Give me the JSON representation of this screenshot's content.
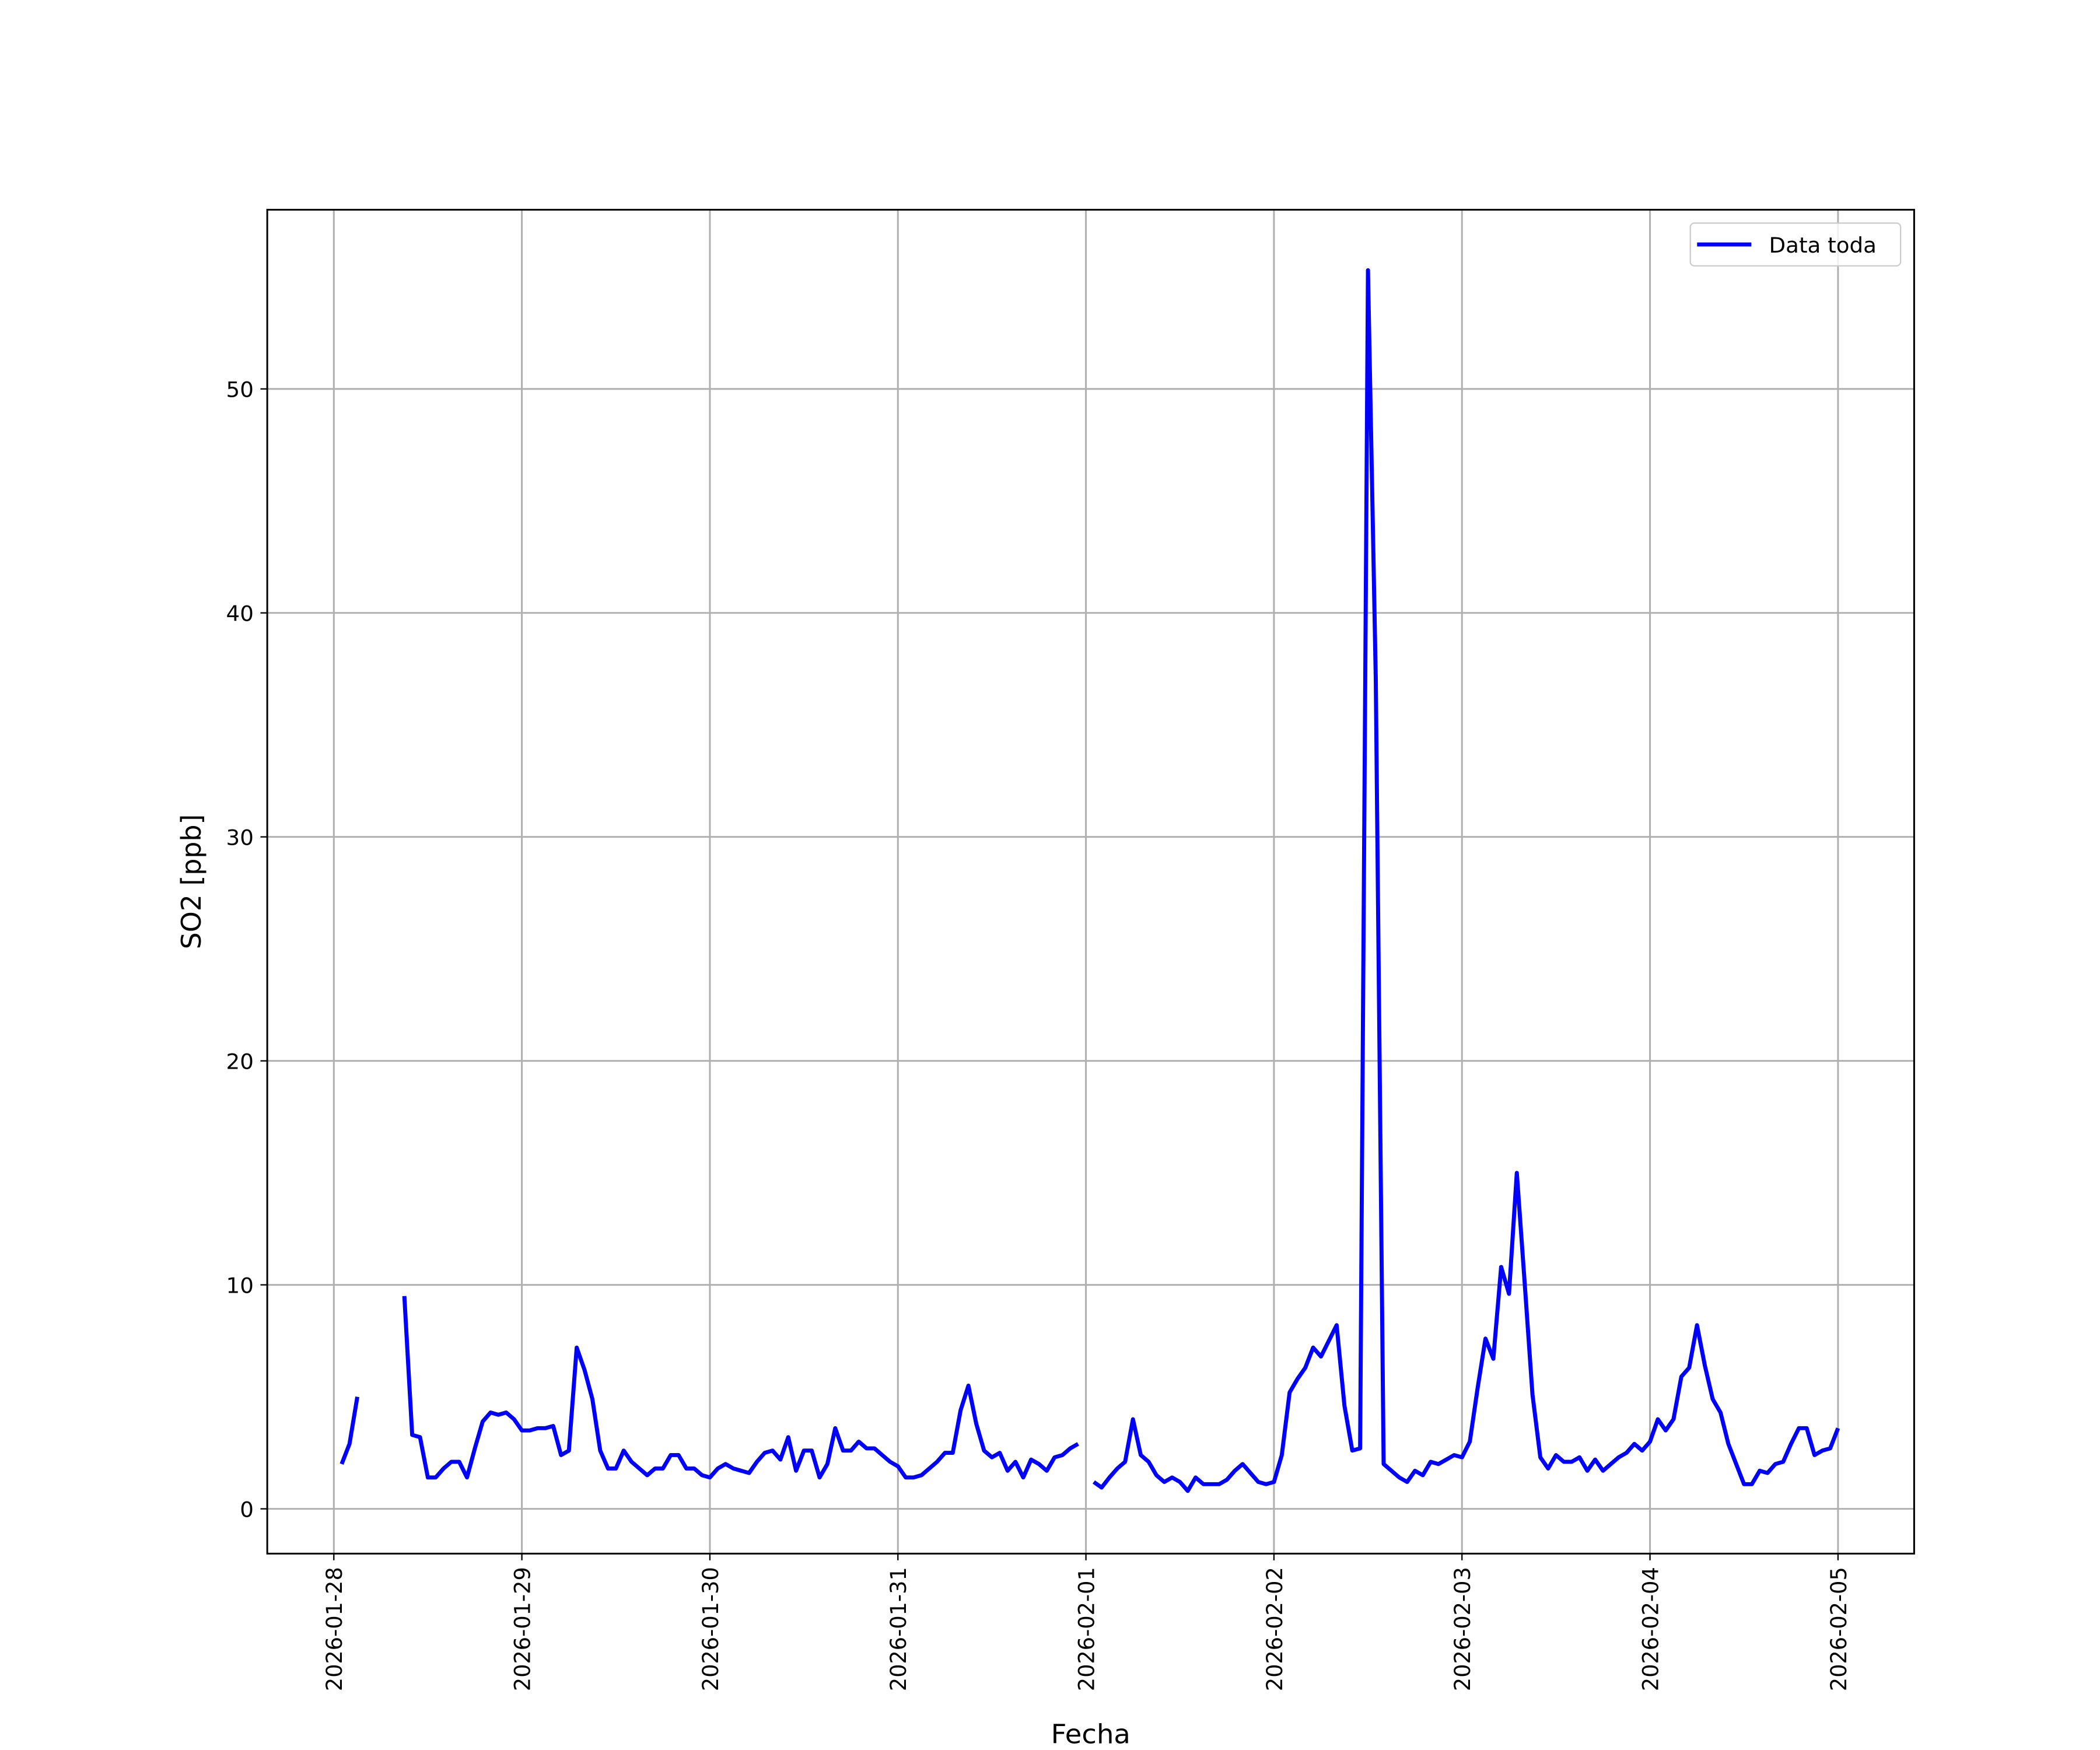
{
  "chart_data": {
    "type": "line",
    "xlabel": "Fecha",
    "ylabel": "SO2 [ppb]",
    "x": [
      "2026-01-28 01:00",
      "2026-01-28 02:00",
      "2026-01-28 03:00",
      "2026-01-28 04:00",
      "2026-01-28 05:00",
      "2026-01-28 06:00",
      "2026-01-28 07:00",
      "2026-01-28 08:00",
      "2026-01-28 09:00",
      "2026-01-28 10:00",
      "2026-01-28 11:00",
      "2026-01-28 12:00",
      "2026-01-28 13:00",
      "2026-01-28 14:00",
      "2026-01-28 15:00",
      "2026-01-28 16:00",
      "2026-01-28 17:00",
      "2026-01-28 18:00",
      "2026-01-28 19:00",
      "2026-01-28 20:00",
      "2026-01-28 21:00",
      "2026-01-28 22:00",
      "2026-01-28 23:00",
      "2026-01-29 00:00",
      "2026-01-29 01:00",
      "2026-01-29 02:00",
      "2026-01-29 03:00",
      "2026-01-29 04:00",
      "2026-01-29 05:00",
      "2026-01-29 06:00",
      "2026-01-29 07:00",
      "2026-01-29 08:00",
      "2026-01-29 09:00",
      "2026-01-29 10:00",
      "2026-01-29 11:00",
      "2026-01-29 12:00",
      "2026-01-29 13:00",
      "2026-01-29 14:00",
      "2026-01-29 15:00",
      "2026-01-29 16:00",
      "2026-01-29 17:00",
      "2026-01-29 18:00",
      "2026-01-29 19:00",
      "2026-01-29 20:00",
      "2026-01-29 21:00",
      "2026-01-29 22:00",
      "2026-01-29 23:00",
      "2026-01-30 00:00",
      "2026-01-30 01:00",
      "2026-01-30 02:00",
      "2026-01-30 03:00",
      "2026-01-30 04:00",
      "2026-01-30 05:00",
      "2026-01-30 06:00",
      "2026-01-30 07:00",
      "2026-01-30 08:00",
      "2026-01-30 09:00",
      "2026-01-30 10:00",
      "2026-01-30 11:00",
      "2026-01-30 12:00",
      "2026-01-30 13:00",
      "2026-01-30 14:00",
      "2026-01-30 15:00",
      "2026-01-30 16:00",
      "2026-01-30 17:00",
      "2026-01-30 18:00",
      "2026-01-30 19:00",
      "2026-01-30 20:00",
      "2026-01-30 21:00",
      "2026-01-30 22:00",
      "2026-01-30 23:00",
      "2026-01-31 00:00",
      "2026-01-31 01:00",
      "2026-01-31 02:00",
      "2026-01-31 03:00",
      "2026-01-31 04:00",
      "2026-01-31 05:00",
      "2026-01-31 06:00",
      "2026-01-31 07:00",
      "2026-01-31 08:00",
      "2026-01-31 09:00",
      "2026-01-31 10:00",
      "2026-01-31 11:00",
      "2026-01-31 12:00",
      "2026-01-31 13:00",
      "2026-01-31 14:00",
      "2026-01-31 15:00",
      "2026-01-31 16:00",
      "2026-01-31 17:00",
      "2026-01-31 18:00",
      "2026-01-31 19:00",
      "2026-01-31 20:00",
      "2026-01-31 21:00",
      "2026-01-31 22:00",
      "2026-01-31 23:00",
      "2026-02-01 00:00",
      "2026-02-01 01:00",
      "2026-02-01 02:00",
      "2026-02-01 03:00",
      "2026-02-01 04:00",
      "2026-02-01 05:00",
      "2026-02-01 06:00",
      "2026-02-01 07:00",
      "2026-02-01 08:00",
      "2026-02-01 09:00",
      "2026-02-01 10:00",
      "2026-02-01 11:00",
      "2026-02-01 12:00",
      "2026-02-01 13:00",
      "2026-02-01 14:00",
      "2026-02-01 15:00",
      "2026-02-01 16:00",
      "2026-02-01 17:00",
      "2026-02-01 18:00",
      "2026-02-01 19:00",
      "2026-02-01 20:00",
      "2026-02-01 21:00",
      "2026-02-01 22:00",
      "2026-02-01 23:00",
      "2026-02-02 00:00",
      "2026-02-02 01:00",
      "2026-02-02 02:00",
      "2026-02-02 03:00",
      "2026-02-02 04:00",
      "2026-02-02 05:00",
      "2026-02-02 06:00",
      "2026-02-02 07:00",
      "2026-02-02 08:00",
      "2026-02-02 09:00",
      "2026-02-02 10:00",
      "2026-02-02 11:00",
      "2026-02-02 12:00",
      "2026-02-02 13:00",
      "2026-02-02 14:00",
      "2026-02-02 15:00",
      "2026-02-02 16:00",
      "2026-02-02 17:00",
      "2026-02-02 18:00",
      "2026-02-02 19:00",
      "2026-02-02 20:00",
      "2026-02-02 21:00",
      "2026-02-02 22:00",
      "2026-02-02 23:00",
      "2026-02-03 00:00",
      "2026-02-03 01:00",
      "2026-02-03 02:00",
      "2026-02-03 03:00",
      "2026-02-03 04:00",
      "2026-02-03 05:00",
      "2026-02-03 06:00",
      "2026-02-03 07:00",
      "2026-02-03 08:00",
      "2026-02-03 09:00",
      "2026-02-03 10:00",
      "2026-02-03 11:00",
      "2026-02-03 12:00",
      "2026-02-03 13:00",
      "2026-02-03 14:00",
      "2026-02-03 15:00",
      "2026-02-03 16:00",
      "2026-02-03 17:00",
      "2026-02-03 18:00",
      "2026-02-03 19:00",
      "2026-02-03 20:00",
      "2026-02-03 21:00",
      "2026-02-03 22:00",
      "2026-02-03 23:00",
      "2026-02-04 00:00",
      "2026-02-04 01:00",
      "2026-02-04 02:00",
      "2026-02-04 03:00",
      "2026-02-04 04:00",
      "2026-02-04 05:00",
      "2026-02-04 06:00",
      "2026-02-04 07:00",
      "2026-02-04 08:00",
      "2026-02-04 09:00",
      "2026-02-04 10:00",
      "2026-02-04 11:00",
      "2026-02-04 12:00",
      "2026-02-04 13:00",
      "2026-02-04 14:00",
      "2026-02-04 15:00",
      "2026-02-04 16:00",
      "2026-02-04 17:00",
      "2026-02-04 18:00",
      "2026-02-04 19:00",
      "2026-02-04 20:00",
      "2026-02-04 21:00",
      "2026-02-04 22:00",
      "2026-02-04 23:00",
      "2026-02-05 00:00"
    ],
    "series": [
      {
        "name": "Data toda",
        "color": "#0000ff",
        "values": [
          2.0,
          2.9,
          5.0,
          null,
          null,
          null,
          null,
          null,
          9.5,
          3.3,
          3.2,
          1.4,
          1.4,
          1.8,
          2.1,
          2.1,
          1.4,
          2.7,
          3.9,
          4.3,
          4.2,
          4.3,
          4.0,
          3.5,
          3.5,
          3.6,
          3.6,
          3.7,
          2.4,
          2.6,
          7.2,
          6.2,
          4.9,
          2.6,
          1.8,
          1.8,
          2.6,
          2.1,
          1.8,
          1.5,
          1.8,
          1.8,
          2.4,
          2.4,
          1.8,
          1.8,
          1.5,
          1.4,
          1.8,
          2.0,
          1.8,
          1.7,
          1.6,
          2.1,
          2.5,
          2.6,
          2.2,
          3.2,
          1.7,
          2.6,
          2.6,
          1.4,
          2.0,
          3.6,
          2.6,
          2.6,
          3.0,
          2.7,
          2.7,
          2.4,
          2.1,
          1.9,
          1.4,
          1.4,
          1.5,
          1.8,
          2.1,
          2.5,
          2.5,
          4.4,
          5.5,
          3.8,
          2.6,
          2.3,
          2.5,
          1.7,
          2.1,
          1.4,
          2.2,
          2.0,
          1.7,
          2.3,
          2.4,
          2.7,
          2.9,
          null,
          1.2,
          0.95,
          1.4,
          1.8,
          2.1,
          4.0,
          2.4,
          2.1,
          1.5,
          1.2,
          1.4,
          1.2,
          0.8,
          1.4,
          1.1,
          1.1,
          1.1,
          1.3,
          1.7,
          2.0,
          1.6,
          1.2,
          1.1,
          1.2,
          2.4,
          5.2,
          5.8,
          6.3,
          7.2,
          6.8,
          7.5,
          8.2,
          4.6,
          2.6,
          2.7,
          55.3,
          37.0,
          2.0,
          1.7,
          1.4,
          1.2,
          1.7,
          1.5,
          2.1,
          2.0,
          2.2,
          2.4,
          2.3,
          3.0,
          5.4,
          7.6,
          6.7,
          10.8,
          9.6,
          15.0,
          10.1,
          5.1,
          2.3,
          1.8,
          2.4,
          2.1,
          2.1,
          2.3,
          1.7,
          2.2,
          1.7,
          2.0,
          2.3,
          2.5,
          2.9,
          2.6,
          3.0,
          4.0,
          3.5,
          4.0,
          5.9,
          6.3,
          8.2,
          6.4,
          4.9,
          4.3,
          2.9,
          2.0,
          1.1,
          1.1,
          1.7,
          1.6,
          2.0,
          2.1,
          2.9,
          3.6,
          3.6,
          2.4,
          2.6,
          2.7,
          3.6
        ]
      }
    ],
    "xlim": [
      "2026-01-27 15:30",
      "2026-02-05 09:43"
    ],
    "xticks": [
      "2026-01-28",
      "2026-01-29",
      "2026-01-30",
      "2026-01-31",
      "2026-02-01",
      "2026-02-02",
      "2026-02-03",
      "2026-02-04",
      "2026-02-05"
    ],
    "ylim": [
      -2,
      58
    ],
    "yticks": [
      0,
      10,
      20,
      30,
      40,
      50
    ],
    "grid": true,
    "legend": "upper right"
  }
}
